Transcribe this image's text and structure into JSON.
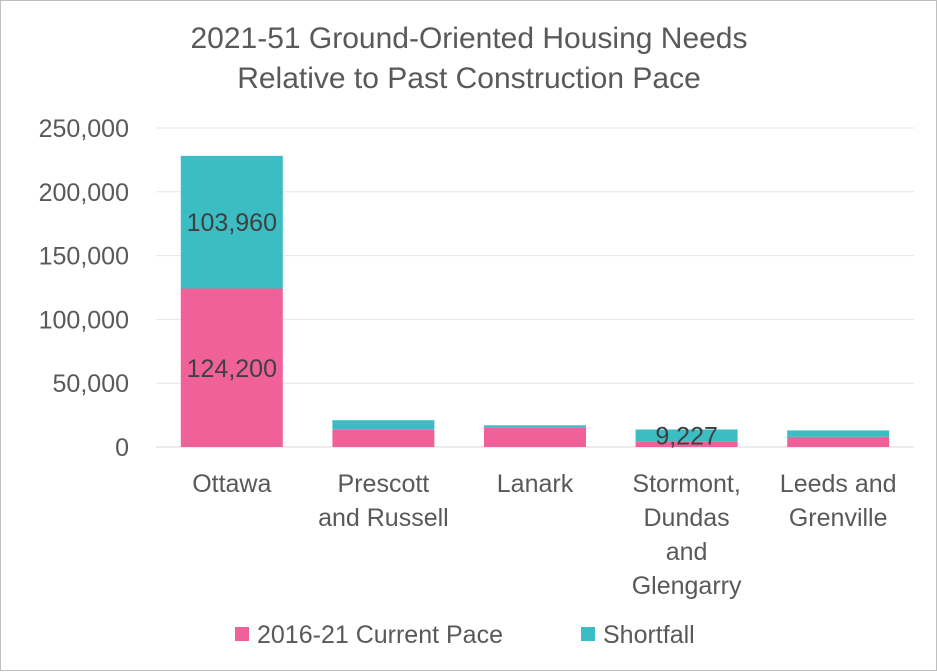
{
  "chart_data": {
    "type": "bar",
    "stacked": true,
    "title": "2021-51 Ground-Oriented Housing Needs",
    "subtitle": "Relative to Past Construction Pace",
    "categories": [
      [
        "Ottawa"
      ],
      [
        "Prescott",
        "and Russell"
      ],
      [
        "Lanark"
      ],
      [
        "Stormont,",
        "Dundas",
        "and",
        "Glengarry"
      ],
      [
        "Leeds and",
        "Grenville"
      ]
    ],
    "series": [
      {
        "name": "2016-21 Current Pace",
        "color": "#f0619a",
        "values": [
          124200,
          13500,
          15000,
          4500,
          8000
        ]
      },
      {
        "name": "Shortfall",
        "color": "#3cbcc3",
        "values": [
          103960,
          7500,
          2000,
          9227,
          5000
        ]
      }
    ],
    "data_labels": [
      {
        "series": 0,
        "index": 0,
        "text": "124,200"
      },
      {
        "series": 1,
        "index": 0,
        "text": "103,960"
      },
      {
        "series": 1,
        "index": 3,
        "text": "9,227"
      }
    ],
    "yticks": [
      "0",
      "50,000",
      "100,000",
      "150,000",
      "200,000",
      "250,000"
    ],
    "ylim": [
      0,
      250000
    ],
    "xlabel": "",
    "ylabel": "",
    "grid": true,
    "legend_position": "bottom"
  }
}
